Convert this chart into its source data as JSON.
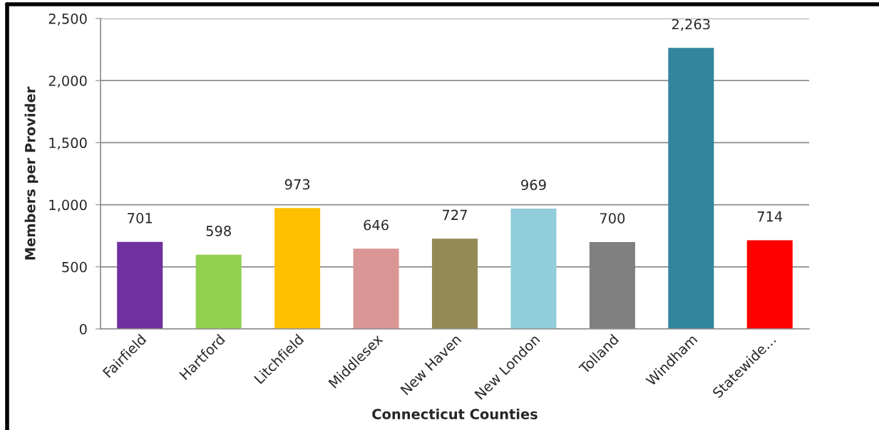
{
  "chart_data": {
    "type": "bar",
    "categories": [
      "Fairfield",
      "Hartford",
      "Litchfield",
      "Middlesex",
      "New Haven",
      "New London",
      "Tolland",
      "Windham",
      "Statewide…"
    ],
    "values": [
      701,
      598,
      973,
      646,
      727,
      969,
      700,
      2263,
      714
    ],
    "value_labels": [
      "701",
      "598",
      "973",
      "646",
      "727",
      "969",
      "700",
      "2,263",
      "714"
    ],
    "colors": [
      "#7030a0",
      "#92d050",
      "#ffc000",
      "#da9694",
      "#948a54",
      "#92cddc",
      "#808080",
      "#31859c",
      "#ff0000"
    ],
    "xlabel": "Connecticut Counties",
    "ylabel": "Members per Provider",
    "ylim": [
      0,
      2500
    ],
    "yticks": [
      {
        "value": 0,
        "label": "0"
      },
      {
        "value": 500,
        "label": "500"
      },
      {
        "value": 1000,
        "label": "1,000"
      },
      {
        "value": 1500,
        "label": "1,500"
      },
      {
        "value": 2000,
        "label": "2,000"
      },
      {
        "value": 2500,
        "label": "2,500"
      }
    ],
    "grid": "y",
    "legend": false
  }
}
